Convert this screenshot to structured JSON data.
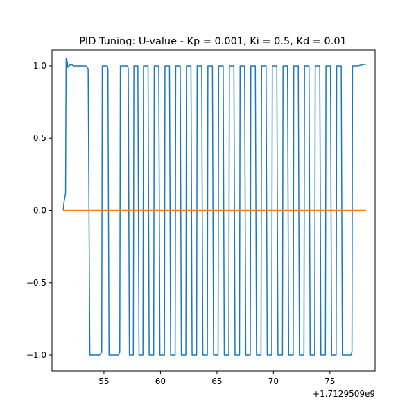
{
  "chart_data": {
    "type": "line",
    "title": "PID Tuning: U-value - Kp = 0.001, Ki = 0.5, Kd = 0.01",
    "xlabel": "",
    "ylabel": "",
    "x_offset_label": "+1.7129509e9",
    "xlim": [
      50.4,
      79.0
    ],
    "ylim": [
      -1.11,
      1.11
    ],
    "x_ticks": [
      55,
      60,
      65,
      70,
      75
    ],
    "x_tick_labels": [
      "55",
      "60",
      "65",
      "70",
      "75"
    ],
    "y_ticks": [
      -1.0,
      -0.5,
      0.0,
      0.5,
      1.0
    ],
    "y_tick_labels": [
      "−1.0",
      "−0.5",
      "0.0",
      "0.5",
      "1.0"
    ],
    "grid": false,
    "legend": "none",
    "series": [
      {
        "color": "#1f77b4",
        "points": [
          [
            51.4,
            0.0
          ],
          [
            51.45,
            0.05
          ],
          [
            51.6,
            0.12
          ],
          [
            51.65,
            1.05
          ],
          [
            51.75,
            1.03
          ],
          [
            51.8,
            0.99
          ],
          [
            51.9,
            1.0
          ],
          [
            52.1,
            1.01
          ],
          [
            52.3,
            1.0
          ],
          [
            53.0,
            1.0
          ],
          [
            53.4,
            1.0
          ],
          [
            53.6,
            0.98
          ],
          [
            53.75,
            -1.0
          ],
          [
            54.2,
            -1.0
          ],
          [
            54.6,
            -1.0
          ],
          [
            54.8,
            -0.98
          ],
          [
            54.85,
            1.0
          ],
          [
            55.3,
            1.0
          ],
          [
            55.35,
            0.98
          ],
          [
            55.45,
            -1.0
          ],
          [
            56.3,
            -1.0
          ],
          [
            56.4,
            -0.98
          ],
          [
            56.45,
            1.0
          ],
          [
            57.1,
            1.0
          ],
          [
            57.15,
            0.98
          ],
          [
            57.25,
            -1.0
          ],
          [
            57.6,
            -1.0
          ],
          [
            57.65,
            1.0
          ],
          [
            58.0,
            1.0
          ],
          [
            58.1,
            -1.0
          ],
          [
            58.45,
            -1.0
          ],
          [
            58.5,
            1.0
          ],
          [
            58.9,
            1.0
          ],
          [
            59.0,
            -1.0
          ],
          [
            59.4,
            -1.0
          ],
          [
            59.45,
            1.0
          ],
          [
            59.85,
            1.0
          ],
          [
            59.95,
            -1.0
          ],
          [
            60.35,
            -1.0
          ],
          [
            60.4,
            1.0
          ],
          [
            60.8,
            1.0
          ],
          [
            60.9,
            -1.0
          ],
          [
            61.3,
            -1.0
          ],
          [
            61.35,
            1.0
          ],
          [
            61.75,
            1.0
          ],
          [
            61.85,
            -1.0
          ],
          [
            62.25,
            -1.0
          ],
          [
            62.3,
            1.0
          ],
          [
            62.7,
            1.0
          ],
          [
            62.8,
            -1.0
          ],
          [
            63.2,
            -1.0
          ],
          [
            63.25,
            1.0
          ],
          [
            63.65,
            1.0
          ],
          [
            63.75,
            -1.0
          ],
          [
            64.15,
            -1.0
          ],
          [
            64.2,
            1.0
          ],
          [
            64.6,
            1.0
          ],
          [
            64.7,
            -1.0
          ],
          [
            65.1,
            -1.0
          ],
          [
            65.15,
            1.0
          ],
          [
            65.55,
            1.0
          ],
          [
            65.65,
            -1.0
          ],
          [
            66.05,
            -1.0
          ],
          [
            66.1,
            1.0
          ],
          [
            66.5,
            1.0
          ],
          [
            66.6,
            -1.0
          ],
          [
            67.0,
            -1.0
          ],
          [
            67.05,
            1.0
          ],
          [
            67.45,
            1.0
          ],
          [
            67.55,
            -1.0
          ],
          [
            67.95,
            -1.0
          ],
          [
            68.0,
            1.0
          ],
          [
            68.4,
            1.0
          ],
          [
            68.5,
            -1.0
          ],
          [
            68.9,
            -1.0
          ],
          [
            68.95,
            1.0
          ],
          [
            69.35,
            1.0
          ],
          [
            69.45,
            -1.0
          ],
          [
            69.85,
            -1.0
          ],
          [
            69.9,
            1.0
          ],
          [
            70.3,
            1.0
          ],
          [
            70.4,
            -1.0
          ],
          [
            70.8,
            -1.0
          ],
          [
            70.85,
            1.0
          ],
          [
            71.25,
            1.0
          ],
          [
            71.35,
            -1.0
          ],
          [
            71.75,
            -1.0
          ],
          [
            71.8,
            1.0
          ],
          [
            72.2,
            1.0
          ],
          [
            72.3,
            -1.0
          ],
          [
            72.7,
            -1.0
          ],
          [
            72.75,
            1.0
          ],
          [
            73.15,
            1.0
          ],
          [
            73.25,
            -1.0
          ],
          [
            73.65,
            -1.0
          ],
          [
            73.7,
            1.0
          ],
          [
            74.1,
            1.0
          ],
          [
            74.2,
            -1.0
          ],
          [
            74.6,
            -1.0
          ],
          [
            74.65,
            1.0
          ],
          [
            75.05,
            1.0
          ],
          [
            75.15,
            -1.0
          ],
          [
            75.55,
            -1.0
          ],
          [
            75.6,
            1.0
          ],
          [
            76.0,
            1.0
          ],
          [
            76.1,
            -1.0
          ],
          [
            76.85,
            -1.0
          ],
          [
            76.95,
            -0.98
          ],
          [
            77.0,
            1.0
          ],
          [
            77.5,
            1.0
          ],
          [
            78.0,
            1.01
          ],
          [
            78.2,
            1.01
          ]
        ]
      },
      {
        "color": "#ff7f0e",
        "points": [
          [
            51.4,
            0.0
          ],
          [
            78.2,
            0.0
          ]
        ]
      }
    ]
  }
}
